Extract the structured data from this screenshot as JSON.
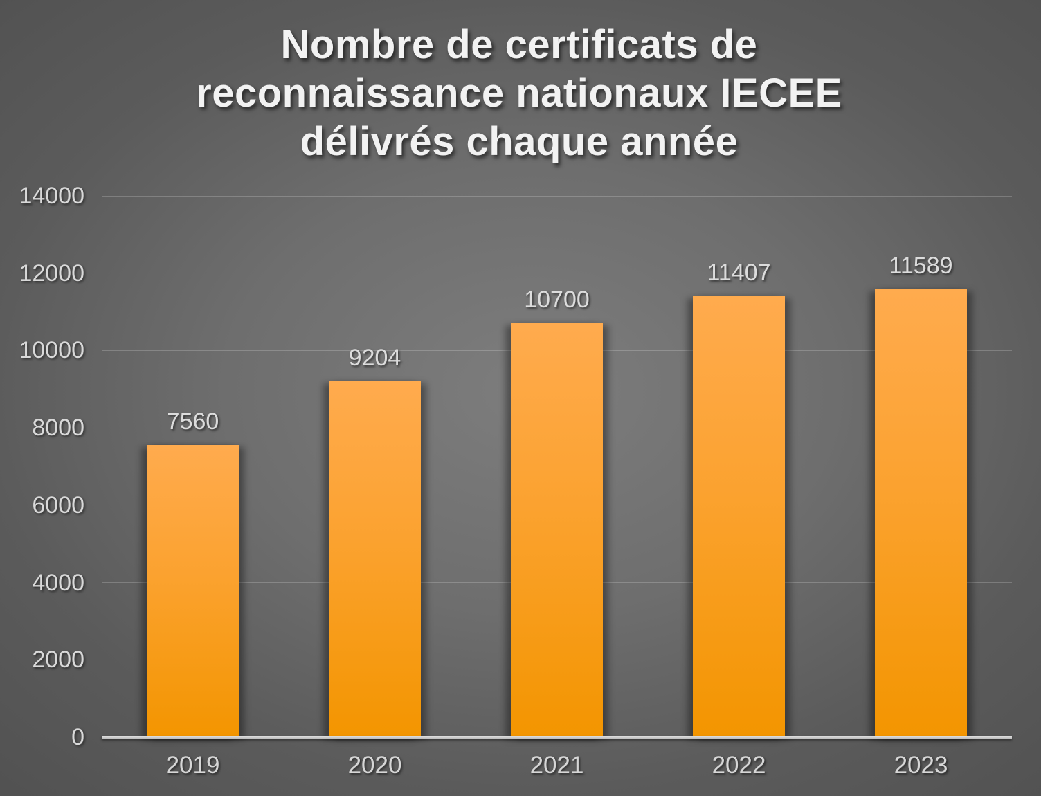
{
  "title": {
    "lines": [
      "Nombre de certificats de",
      "reconnaissance nationaux IECEE",
      "délivrés chaque année"
    ]
  },
  "chart_data": {
    "type": "bar",
    "title": "Nombre de certificats de reconnaissance nationaux IECEE délivrés chaque année",
    "categories": [
      "2019",
      "2020",
      "2021",
      "2022",
      "2023"
    ],
    "values": [
      7560,
      9204,
      10700,
      11407,
      11589
    ],
    "data_labels": [
      "7560",
      "9204",
      "10700",
      "11407",
      "11589"
    ],
    "xlabel": "",
    "ylabel": "",
    "ylim": [
      0,
      14000
    ],
    "ytick_step": 2000,
    "yticks": [
      0,
      2000,
      4000,
      6000,
      8000,
      10000,
      12000,
      14000
    ],
    "grid": true,
    "legend": false,
    "colors": {
      "bar_top": "#ffab4e",
      "bar_bottom": "#f39500",
      "background_center": "#7d7d7d",
      "background_edge": "#525252",
      "axis_line": "#c9c9c9",
      "label_text": "#d9d9d9",
      "title_text": "#f2f2f2"
    }
  }
}
